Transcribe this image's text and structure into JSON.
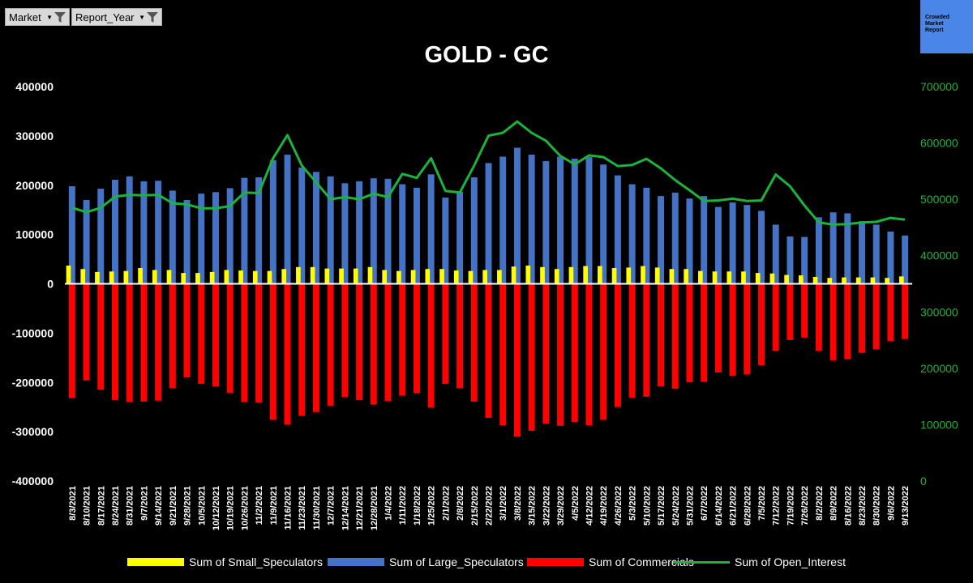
{
  "filters": [
    {
      "label": "Market"
    },
    {
      "label": "Report_Year"
    }
  ],
  "brand": {
    "line1": "Crowded",
    "line2": "Market",
    "line3": "Report"
  },
  "chart_data": {
    "type": "bar",
    "title": "GOLD - GC",
    "categories": [
      "8/3/2021",
      "8/10/2021",
      "8/17/2021",
      "8/24/2021",
      "8/31/2021",
      "9/7/2021",
      "9/14/2021",
      "9/21/2021",
      "9/28/2021",
      "10/5/2021",
      "10/12/2021",
      "10/19/2021",
      "10/26/2021",
      "11/2/2021",
      "11/9/2021",
      "11/16/2021",
      "11/23/2021",
      "11/30/2021",
      "12/7/2021",
      "12/14/2021",
      "12/21/2021",
      "12/28/2021",
      "1/4/2022",
      "1/11/2022",
      "1/18/2022",
      "1/25/2022",
      "2/1/2022",
      "2/8/2022",
      "2/15/2022",
      "2/22/2022",
      "3/1/2022",
      "3/8/2022",
      "3/15/2022",
      "3/22/2022",
      "3/29/2022",
      "4/5/2022",
      "4/12/2022",
      "4/19/2022",
      "4/26/2022",
      "5/3/2022",
      "5/10/2022",
      "5/17/2022",
      "5/24/2022",
      "5/31/2022",
      "6/7/2022",
      "6/14/2022",
      "6/21/2022",
      "6/28/2022",
      "7/5/2022",
      "7/12/2022",
      "7/19/2022",
      "7/26/2022",
      "8/2/2022",
      "8/9/2022",
      "8/16/2022",
      "8/23/2022",
      "8/30/2022",
      "9/6/2022",
      "9/13/2022"
    ],
    "primary_ylim": [
      -400000,
      400000
    ],
    "primary_ticks": [
      -400000,
      -300000,
      -200000,
      -100000,
      0,
      100000,
      200000,
      300000,
      400000
    ],
    "secondary_ylim": [
      0,
      700000
    ],
    "secondary_ticks": [
      0,
      100000,
      200000,
      300000,
      400000,
      500000,
      600000,
      700000
    ],
    "legend_position": "bottom",
    "series": [
      {
        "name": "Sum of Small_Speculators",
        "type": "bar",
        "axis": "primary",
        "color": "#ffff00",
        "values": [
          37000,
          30000,
          24000,
          25000,
          26000,
          32000,
          28000,
          28000,
          22000,
          22000,
          24000,
          28000,
          27000,
          26000,
          26000,
          30000,
          34000,
          34000,
          31000,
          31000,
          31000,
          34000,
          28000,
          26000,
          28000,
          30000,
          30000,
          27000,
          26000,
          28000,
          28000,
          35000,
          37000,
          34000,
          30000,
          34000,
          36000,
          36000,
          32000,
          33000,
          36000,
          33000,
          30000,
          30000,
          26000,
          25000,
          25000,
          25000,
          22000,
          21000,
          18000,
          17000,
          14000,
          12000,
          13000,
          13000,
          13000,
          12000,
          15000
        ]
      },
      {
        "name": "Sum of Large_Speculators",
        "type": "bar",
        "axis": "primary",
        "color": "#4472c4",
        "values": [
          198000,
          170000,
          193000,
          211000,
          218000,
          208000,
          209000,
          189000,
          170000,
          183000,
          186000,
          194000,
          215000,
          216000,
          251000,
          262000,
          236000,
          227000,
          218000,
          204000,
          208000,
          214000,
          213000,
          202000,
          195000,
          222000,
          175000,
          187000,
          216000,
          245000,
          258000,
          276000,
          262000,
          249000,
          258000,
          254000,
          257000,
          242000,
          220000,
          202000,
          195000,
          178000,
          185000,
          173000,
          178000,
          156000,
          165000,
          160000,
          148000,
          120000,
          96000,
          95000,
          135000,
          145000,
          143000,
          127000,
          120000,
          106000,
          98000
        ]
      },
      {
        "name": "Sum of Commercials",
        "type": "bar",
        "axis": "primary",
        "color": "#ff0000",
        "values": [
          -232000,
          -196000,
          -215000,
          -236000,
          -240000,
          -239000,
          -237000,
          -212000,
          -190000,
          -203000,
          -208000,
          -221000,
          -240000,
          -241000,
          -276000,
          -286000,
          -268000,
          -260000,
          -247000,
          -230000,
          -236000,
          -245000,
          -238000,
          -227000,
          -222000,
          -251000,
          -203000,
          -212000,
          -239000,
          -272000,
          -287000,
          -310000,
          -298000,
          -284000,
          -288000,
          -280000,
          -287000,
          -276000,
          -250000,
          -231000,
          -229000,
          -208000,
          -213000,
          -200000,
          -199000,
          -180000,
          -187000,
          -184000,
          -165000,
          -136000,
          -114000,
          -109000,
          -136000,
          -155000,
          -153000,
          -140000,
          -133000,
          -116000,
          -112000
        ]
      },
      {
        "name": "Sum of Open_Interest",
        "type": "line",
        "axis": "secondary",
        "color": "#1db33b",
        "values": [
          485000,
          477000,
          485000,
          505000,
          508000,
          507000,
          508000,
          493000,
          491000,
          484000,
          484000,
          488000,
          512000,
          511000,
          573000,
          614000,
          560000,
          530000,
          500000,
          504000,
          500000,
          510000,
          504000,
          545000,
          538000,
          573000,
          515000,
          512000,
          560000,
          613000,
          618000,
          638000,
          618000,
          604000,
          577000,
          562000,
          578000,
          575000,
          559000,
          561000,
          572000,
          555000,
          534000,
          516000,
          497000,
          498000,
          501000,
          497000,
          498000,
          544000,
          523000,
          489000,
          459000,
          455000,
          456000,
          459000,
          460000,
          467000,
          464000
        ]
      }
    ]
  }
}
